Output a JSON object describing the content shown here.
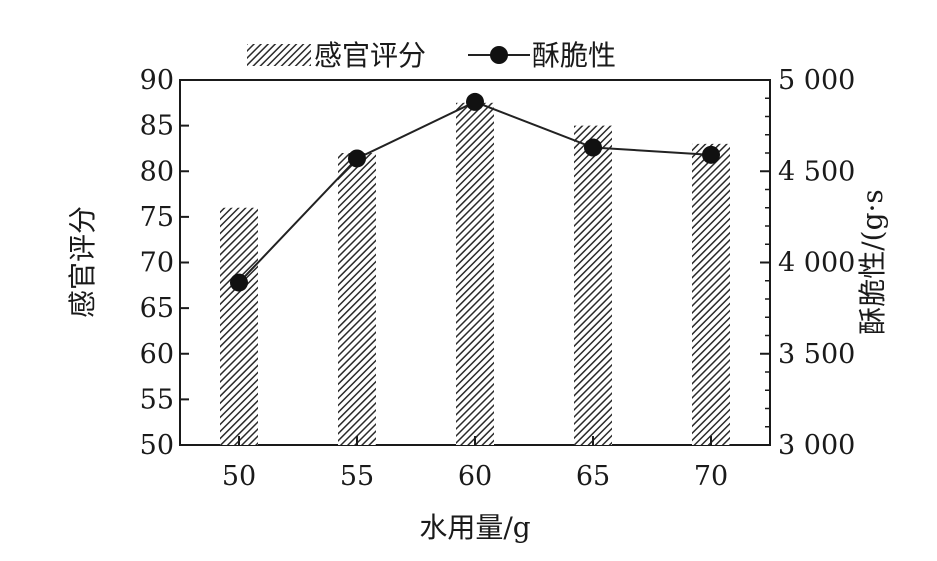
{
  "chart_data": {
    "type": "bar",
    "categories": [
      "50",
      "55",
      "60",
      "65",
      "70"
    ],
    "series": [
      {
        "name": "感官评分",
        "kind": "bar",
        "axis": "left",
        "values": [
          76,
          82,
          87.5,
          85,
          83
        ]
      },
      {
        "name": "酥脆性",
        "kind": "line",
        "axis": "right",
        "values": [
          3890,
          4570,
          4880,
          4630,
          4590
        ]
      }
    ],
    "xlabel": "水用量/g",
    "ylabel_left": "感官评分",
    "ylabel_right": "酥脆性/(g·s",
    "ylim_left": [
      50,
      90
    ],
    "yticks_left": [
      "50",
      "55",
      "60",
      "65",
      "70",
      "75",
      "80",
      "85",
      "90"
    ],
    "ylim_right": [
      3000,
      5000
    ],
    "yticks_right": [
      "3 000",
      "3 500",
      "4 000",
      "4 500",
      "5 000"
    ],
    "xticks": [
      "50",
      "55",
      "60",
      "65",
      "70"
    ],
    "grid": false,
    "legend_position": "top",
    "colors": {
      "bar_hatch": "#333333",
      "line": "#222222",
      "marker": "#111111"
    }
  }
}
